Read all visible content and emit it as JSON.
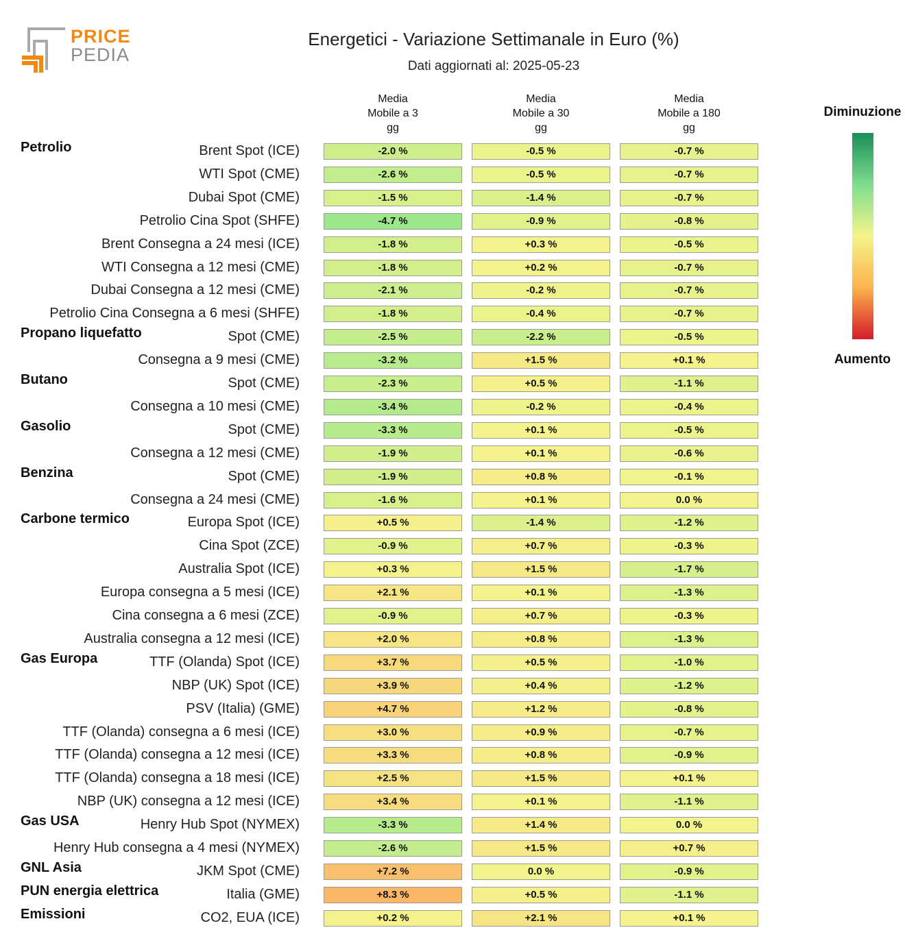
{
  "logo": {
    "line1": "PRICE",
    "line2": "PEDIA"
  },
  "title": "Energetici - Variazione Settimanale in Euro (%)",
  "subtitle": "Dati aggiornati al: 2025-05-23",
  "legend": {
    "top": "Diminuzione",
    "bottom": "Aumento",
    "colors": [
      "#1a8e5a",
      "#7fdd8e",
      "#f4f48c",
      "#fbb34c",
      "#d51a2b"
    ]
  },
  "chart_data": {
    "type": "table",
    "title": "Energetici - Variazione Settimanale in Euro (%)",
    "columns": [
      "Media\nMobile a 3\ngg",
      "Media\nMobile a 30\ngg",
      "Media\nMobile a 180\ngg"
    ],
    "groups": [
      {
        "name": "Petrolio",
        "rows": [
          {
            "label": "Brent Spot (ICE)",
            "values": [
              "-2.0 %",
              "-0.5 %",
              "-0.7 %"
            ]
          },
          {
            "label": "WTI Spot (CME)",
            "values": [
              "-2.6 %",
              "-0.5 %",
              "-0.7 %"
            ]
          },
          {
            "label": "Dubai Spot (CME)",
            "values": [
              "-1.5 %",
              "-1.4 %",
              "-0.7 %"
            ]
          },
          {
            "label": "Petrolio Cina Spot (SHFE)",
            "values": [
              "-4.7 %",
              "-0.9 %",
              "-0.8 %"
            ]
          },
          {
            "label": "Brent Consegna a 24 mesi (ICE)",
            "values": [
              "-1.8 %",
              "+0.3 %",
              "-0.5 %"
            ]
          },
          {
            "label": "WTI Consegna a 12 mesi (CME)",
            "values": [
              "-1.8 %",
              "+0.2 %",
              "-0.7 %"
            ]
          },
          {
            "label": "Dubai Consegna a 12 mesi (CME)",
            "values": [
              "-2.1 %",
              "-0.2 %",
              "-0.7 %"
            ]
          },
          {
            "label": "Petrolio Cina Consegna a 6 mesi (SHFE)",
            "values": [
              "-1.8 %",
              "-0.4 %",
              "-0.7 %"
            ]
          }
        ]
      },
      {
        "name": "Propano liquefatto",
        "rows": [
          {
            "label": "Spot (CME)",
            "values": [
              "-2.5 %",
              "-2.2 %",
              "-0.5 %"
            ]
          },
          {
            "label": "Consegna a 9 mesi (CME)",
            "values": [
              "-3.2 %",
              "+1.5 %",
              "+0.1 %"
            ]
          }
        ]
      },
      {
        "name": "Butano",
        "rows": [
          {
            "label": "Spot (CME)",
            "values": [
              "-2.3 %",
              "+0.5 %",
              "-1.1 %"
            ]
          },
          {
            "label": "Consegna a 10 mesi (CME)",
            "values": [
              "-3.4 %",
              "-0.2 %",
              "-0.4 %"
            ]
          }
        ]
      },
      {
        "name": "Gasolio",
        "rows": [
          {
            "label": "Spot (CME)",
            "values": [
              "-3.3 %",
              "+0.1 %",
              "-0.5 %"
            ]
          },
          {
            "label": "Consegna a 12 mesi (CME)",
            "values": [
              "-1.9 %",
              "+0.1 %",
              "-0.6 %"
            ]
          }
        ]
      },
      {
        "name": "Benzina",
        "rows": [
          {
            "label": "Spot (CME)",
            "values": [
              "-1.9 %",
              "+0.8 %",
              "-0.1 %"
            ]
          },
          {
            "label": "Consegna a 24 mesi (CME)",
            "values": [
              "-1.6 %",
              "+0.1 %",
              "0.0 %"
            ]
          }
        ]
      },
      {
        "name": "Carbone termico",
        "rows": [
          {
            "label": "Europa Spot (ICE)",
            "values": [
              "+0.5 %",
              "-1.4 %",
              "-1.2 %"
            ]
          },
          {
            "label": "Cina Spot (ZCE)",
            "values": [
              "-0.9 %",
              "+0.7 %",
              "-0.3 %"
            ]
          },
          {
            "label": "Australia Spot (ICE)",
            "values": [
              "+0.3 %",
              "+1.5 %",
              "-1.7 %"
            ]
          },
          {
            "label": "Europa consegna a 5 mesi (ICE)",
            "values": [
              "+2.1 %",
              "+0.1 %",
              "-1.3 %"
            ]
          },
          {
            "label": "Cina consegna a 6 mesi (ZCE)",
            "values": [
              "-0.9 %",
              "+0.7 %",
              "-0.3 %"
            ]
          },
          {
            "label": "Australia consegna a 12 mesi (ICE)",
            "values": [
              "+2.0 %",
              "+0.8 %",
              "-1.3 %"
            ]
          }
        ]
      },
      {
        "name": "Gas Europa",
        "rows": [
          {
            "label": "TTF (Olanda) Spot (ICE)",
            "values": [
              "+3.7 %",
              "+0.5 %",
              "-1.0 %"
            ]
          },
          {
            "label": "NBP (UK) Spot (ICE)",
            "values": [
              "+3.9 %",
              "+0.4 %",
              "-1.2 %"
            ]
          },
          {
            "label": "PSV (Italia) (GME)",
            "values": [
              "+4.7 %",
              "+1.2 %",
              "-0.8 %"
            ]
          },
          {
            "label": "TTF (Olanda) consegna a 6 mesi (ICE)",
            "values": [
              "+3.0 %",
              "+0.9 %",
              "-0.7 %"
            ]
          },
          {
            "label": "TTF (Olanda) consegna a 12 mesi (ICE)",
            "values": [
              "+3.3 %",
              "+0.8 %",
              "-0.9 %"
            ]
          },
          {
            "label": "TTF (Olanda) consegna a 18 mesi (ICE)",
            "values": [
              "+2.5 %",
              "+1.5 %",
              "+0.1 %"
            ]
          },
          {
            "label": "NBP (UK) consegna a 12 mesi (ICE)",
            "values": [
              "+3.4 %",
              "+0.1 %",
              "-1.1 %"
            ]
          }
        ]
      },
      {
        "name": "Gas USA",
        "rows": [
          {
            "label": "Henry Hub Spot (NYMEX)",
            "values": [
              "-3.3 %",
              "+1.4 %",
              "0.0 %"
            ]
          },
          {
            "label": "Henry Hub consegna a 4 mesi (NYMEX)",
            "values": [
              "-2.6 %",
              "+1.5 %",
              "+0.7 %"
            ]
          }
        ]
      },
      {
        "name": "GNL Asia",
        "rows": [
          {
            "label": "JKM Spot (CME)",
            "values": [
              "+7.2 %",
              "0.0 %",
              "-0.9 %"
            ]
          }
        ]
      },
      {
        "name": "PUN energia elettrica",
        "rows": [
          {
            "label": "Italia (GME)",
            "values": [
              "+8.3 %",
              "+0.5 %",
              "-1.1 %"
            ]
          }
        ]
      },
      {
        "name": "Emissioni",
        "rows": [
          {
            "label": "CO2, EUA (ICE)",
            "values": [
              "+0.2 %",
              "+2.1 %",
              "+0.1 %"
            ]
          }
        ]
      }
    ]
  }
}
